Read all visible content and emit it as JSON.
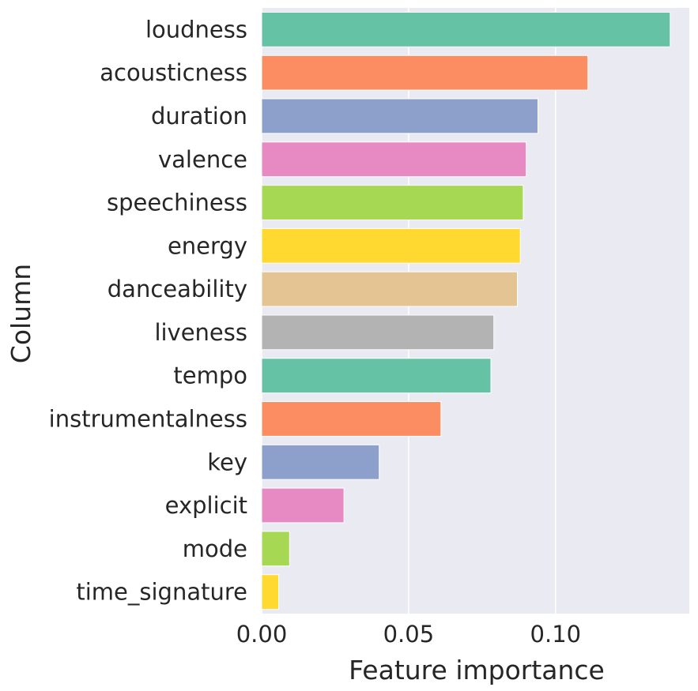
{
  "chart_data": {
    "type": "bar",
    "orientation": "horizontal",
    "title": "",
    "xlabel": "Feature importance",
    "ylabel": "Column",
    "categories": [
      "loudness",
      "acousticness",
      "duration",
      "valence",
      "speechiness",
      "energy",
      "danceability",
      "liveness",
      "tempo",
      "instrumentalness",
      "key",
      "explicit",
      "mode",
      "time_signature"
    ],
    "values": [
      0.139,
      0.111,
      0.094,
      0.09,
      0.089,
      0.088,
      0.087,
      0.079,
      0.078,
      0.061,
      0.04,
      0.028,
      0.0095,
      0.0058
    ],
    "xlim": [
      0,
      0.1455
    ],
    "xticks": [
      0.0,
      0.05,
      0.1
    ],
    "xtick_labels": [
      "0.00",
      "0.05",
      "0.10"
    ],
    "grid": true,
    "colors": [
      "#66c2a5",
      "#fc8d62",
      "#8da0cb",
      "#e78ac3",
      "#a6d854",
      "#ffd92f",
      "#e5c494",
      "#b3b3b3",
      "#66c2a5",
      "#fc8d62",
      "#8da0cb",
      "#e78ac3",
      "#a6d854",
      "#ffd92f"
    ],
    "background": "#eaeaf2"
  }
}
